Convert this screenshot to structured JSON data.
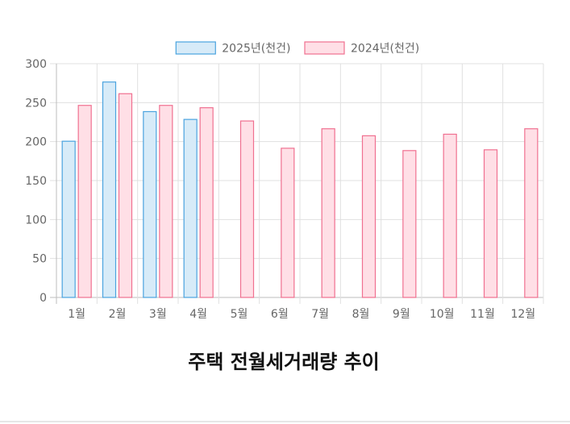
{
  "chart_data": {
    "type": "bar",
    "title": "주택 전월세거래량 추이",
    "categories": [
      "1월",
      "2월",
      "3월",
      "4월",
      "5월",
      "6월",
      "7월",
      "8월",
      "9월",
      "10월",
      "11월",
      "12월"
    ],
    "series": [
      {
        "name": "2025년(천건)",
        "values": [
          201,
          277,
          239,
          229,
          null,
          null,
          null,
          null,
          null,
          null,
          null,
          null
        ],
        "fill": "#d7ebf8",
        "stroke": "#4aa3df"
      },
      {
        "name": "2024년(천건)",
        "values": [
          247,
          262,
          247,
          244,
          227,
          192,
          217,
          208,
          189,
          210,
          190,
          217
        ],
        "fill": "#ffdfe6",
        "stroke": "#f07090"
      }
    ],
    "ylim": [
      0,
      300
    ],
    "yticks": [
      0,
      50,
      100,
      150,
      200,
      250,
      300
    ],
    "grid": true,
    "legend": "top-center",
    "gridColor": "#e0e0e0",
    "textColor": "#666666",
    "titleColor": "#111111"
  }
}
